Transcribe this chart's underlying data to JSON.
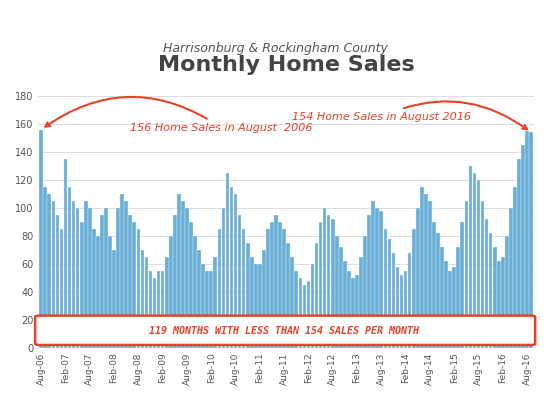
{
  "title": "Monthly Home Sales",
  "subtitle": "Harrisonburg & Rockingham County",
  "bar_color": "#6baed6",
  "background_color": "#ffffff",
  "annotation_color": "#e8412a",
  "ylim": [
    0,
    180
  ],
  "yticks": [
    0,
    20,
    40,
    60,
    80,
    100,
    120,
    140,
    160,
    180
  ],
  "annotation1_text": "156 Home Sales in August  2006",
  "annotation2_text": "154 Home Sales in August 2016",
  "banner_text": "119 MONTHS WITH LESS THAN 154 SALES PER MONTH",
  "tick_labels": [
    "Aug-06",
    "Feb-07",
    "Aug-07",
    "Feb-08",
    "Aug-08",
    "Feb-09",
    "Aug-09",
    "Feb-10",
    "Aug-10",
    "Feb-11",
    "Aug-11",
    "Feb-12",
    "Aug-12",
    "Feb-13",
    "Aug-13",
    "Feb-14",
    "Aug-14",
    "Feb-15",
    "Aug-15",
    "Feb-16",
    "Aug-16"
  ],
  "monthly_values": [
    156,
    115,
    110,
    105,
    95,
    85,
    135,
    115,
    105,
    100,
    90,
    105,
    100,
    85,
    80,
    95,
    100,
    80,
    70,
    100,
    110,
    105,
    95,
    90,
    85,
    70,
    65,
    55,
    50,
    55,
    55,
    65,
    80,
    95,
    110,
    105,
    100,
    90,
    80,
    70,
    60,
    55,
    55,
    65,
    85,
    100,
    125,
    115,
    110,
    95,
    85,
    75,
    65,
    60,
    60,
    70,
    85,
    90,
    95,
    90,
    85,
    75,
    65,
    55,
    50,
    45,
    48,
    60,
    75,
    90,
    100,
    95,
    92,
    80,
    72,
    62,
    55,
    50,
    52,
    65,
    80,
    95,
    105,
    100,
    98,
    85,
    78,
    68,
    58,
    52,
    55,
    68,
    85,
    100,
    115,
    110,
    105,
    90,
    82,
    72,
    62,
    55,
    58,
    72,
    90,
    105,
    130,
    125,
    120,
    105,
    92,
    82,
    72,
    62,
    65,
    80,
    100,
    115,
    135,
    145,
    155,
    154
  ]
}
